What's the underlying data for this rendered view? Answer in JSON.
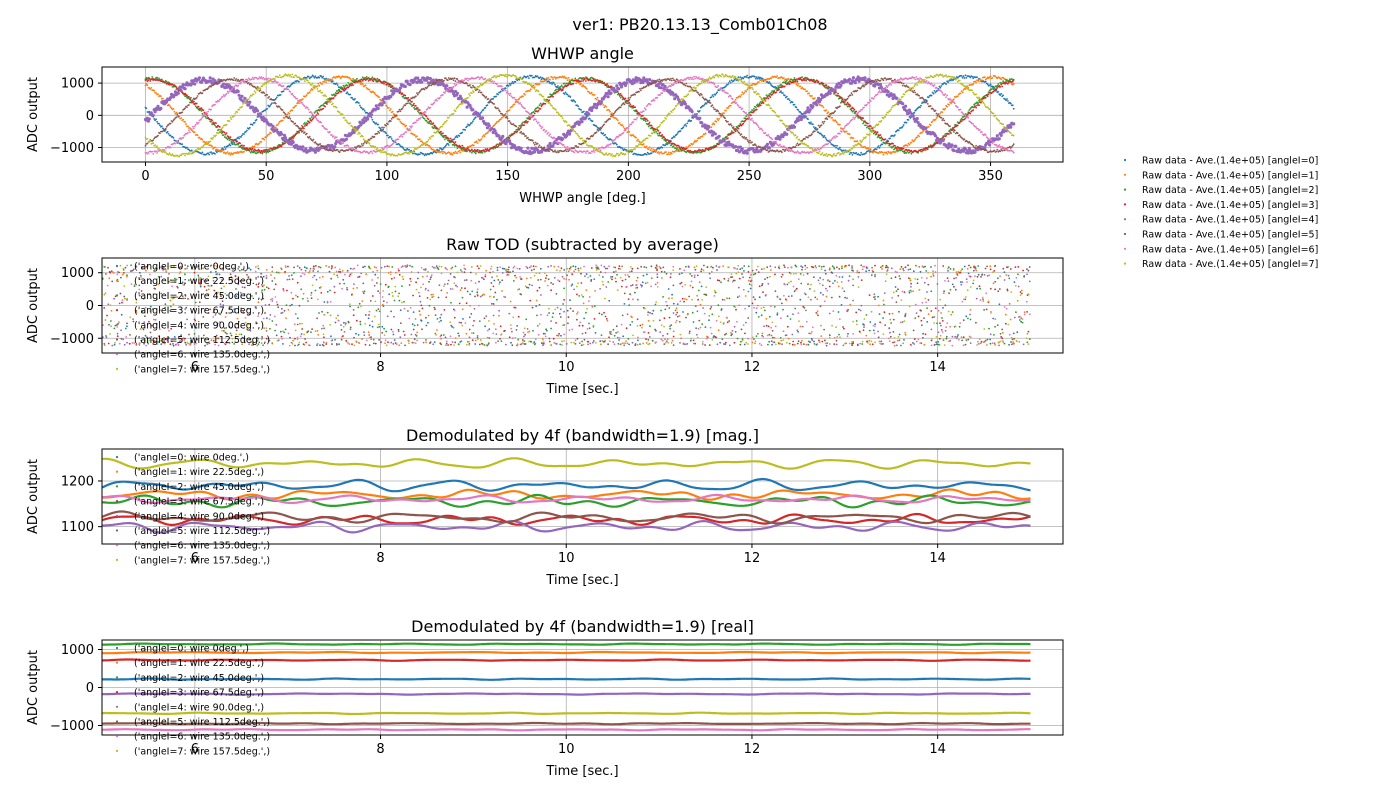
{
  "figure_title": "ver1: PB20.13.13_Comb01Ch08",
  "colors": [
    "#1f77b4",
    "#ff7f0e",
    "#2ca02c",
    "#d62728",
    "#9467bd",
    "#8c564b",
    "#e377c2",
    "#bcbd22"
  ],
  "raw_legend": [
    "Raw data - Ave.(1.4e+05) [angleI=0]",
    "Raw data - Ave.(1.4e+05) [angleI=1]",
    "Raw data - Ave.(1.4e+05) [angleI=2]",
    "Raw data - Ave.(1.4e+05) [angleI=3]",
    "Raw data - Ave.(1.4e+05) [angleI=4]",
    "Raw data - Ave.(1.4e+05) [angleI=5]",
    "Raw data - Ave.(1.4e+05) [angleI=6]",
    "Raw data - Ave.(1.4e+05) [angleI=7]"
  ],
  "wire_legend": [
    "('angleI=0: wire 0deg.',)",
    "('angleI=1: wire 22.5deg.',)",
    "('angleI=2: wire 45.0deg.',)",
    "('angleI=3: wire 67.5deg.',)",
    "('angleI=4: wire 90.0deg.',)",
    "('angleI=5: wire 112.5deg.',)",
    "('angleI=6: wire 135.0deg.',)",
    "('angleI=7: wire 157.5deg.',)"
  ],
  "chart_data": [
    {
      "id": "whwp",
      "type": "scatter",
      "title": "WHWP angle",
      "xlabel": "WHWP angle [deg.]",
      "ylabel": "ADC output",
      "xlim": [
        -18,
        380
      ],
      "ylim": [
        -1450,
        1500
      ],
      "xticks": [
        0,
        50,
        100,
        150,
        200,
        250,
        300,
        350
      ],
      "yticks": [
        -1000,
        0,
        1000
      ],
      "grid": true,
      "legend": "outside-right",
      "model": "y = A*cos(4*(x - phase)) ; one series per angleI",
      "series": [
        {
          "name": "angleI=0",
          "amplitude": 1200,
          "phase_deg": 70
        },
        {
          "name": "angleI=1",
          "amplitude": 1180,
          "phase_deg": 81
        },
        {
          "name": "angleI=2",
          "amplitude": 1150,
          "phase_deg": 92
        },
        {
          "name": "angleI=3",
          "amplitude": 1110,
          "phase_deg": 3
        },
        {
          "name": "angleI=4",
          "amplitude": 1100,
          "phase_deg": 25
        },
        {
          "name": "angleI=5",
          "amplitude": 1120,
          "phase_deg": 36
        },
        {
          "name": "angleI=6",
          "amplitude": 1160,
          "phase_deg": 47
        },
        {
          "name": "angleI=7",
          "amplitude": 1240,
          "phase_deg": 59
        }
      ]
    },
    {
      "id": "rawtod",
      "type": "scatter",
      "title": "Raw TOD (subtracted by average)",
      "xlabel": "Time [sec.]",
      "ylabel": "ADC output",
      "xlim": [
        5,
        15.35
      ],
      "ylim": [
        -1450,
        1450
      ],
      "xticks": [
        6,
        8,
        10,
        12,
        14
      ],
      "yticks": [
        -1000,
        0,
        1000
      ],
      "grid": true,
      "legend": "upper-left",
      "amplitude_range": [
        -1200,
        1200
      ],
      "series": [
        "angleI=0",
        "angleI=1",
        "angleI=2",
        "angleI=3",
        "angleI=4",
        "angleI=5",
        "angleI=6",
        "angleI=7"
      ]
    },
    {
      "id": "demodmag",
      "type": "line",
      "title": "Demodulated by 4f (bandwidth=1.9) [mag.]",
      "xlabel": "Time [sec.]",
      "ylabel": "ADC output",
      "xlim": [
        5,
        15.35
      ],
      "ylim": [
        1062,
        1270
      ],
      "xticks": [
        6,
        8,
        10,
        12,
        14
      ],
      "yticks": [
        1100,
        1200
      ],
      "grid": true,
      "legend": "upper-left",
      "series": [
        {
          "name": "angleI=0",
          "mean": 1190,
          "ripple": 12
        },
        {
          "name": "angleI=1",
          "mean": 1170,
          "ripple": 10
        },
        {
          "name": "angleI=2",
          "mean": 1155,
          "ripple": 12
        },
        {
          "name": "angleI=3",
          "mean": 1115,
          "ripple": 11
        },
        {
          "name": "angleI=4",
          "mean": 1100,
          "ripple": 11
        },
        {
          "name": "angleI=5",
          "mean": 1120,
          "ripple": 11
        },
        {
          "name": "angleI=6",
          "mean": 1160,
          "ripple": 8
        },
        {
          "name": "angleI=7",
          "mean": 1238,
          "ripple": 10
        }
      ]
    },
    {
      "id": "demodreal",
      "type": "line",
      "title": "Demodulated by 4f (bandwidth=1.9) [real]",
      "xlabel": "Time [sec.]",
      "ylabel": "ADC output",
      "xlim": [
        5,
        15.35
      ],
      "ylim": [
        -1250,
        1250
      ],
      "xticks": [
        6,
        8,
        10,
        12,
        14
      ],
      "yticks": [
        -1000,
        0,
        1000
      ],
      "grid": true,
      "legend": "upper-left",
      "series": [
        {
          "name": "angleI=0",
          "mean": 220,
          "ripple": 15
        },
        {
          "name": "angleI=1",
          "mean": 920,
          "ripple": 15
        },
        {
          "name": "angleI=2",
          "mean": 1140,
          "ripple": 15
        },
        {
          "name": "angleI=3",
          "mean": 720,
          "ripple": 15
        },
        {
          "name": "angleI=4",
          "mean": -170,
          "ripple": 15
        },
        {
          "name": "angleI=5",
          "mean": -950,
          "ripple": 15
        },
        {
          "name": "angleI=6",
          "mean": -1110,
          "ripple": 15
        },
        {
          "name": "angleI=7",
          "mean": -680,
          "ripple": 15
        }
      ]
    }
  ]
}
